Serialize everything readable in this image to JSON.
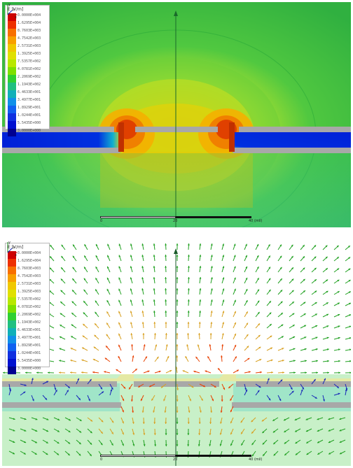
{
  "panels": [
    {
      "legend_title": "E [V/m]",
      "legend_values": [
        "3.0000E+004",
        "1.6295E+004",
        "8.7603E+003",
        "4.7542E+003",
        "2.5731E+003",
        "1.3925E+003",
        "7.5357E+002",
        "4.0781E+002",
        "2.2069E+002",
        "1.1943E+002",
        "6.4633E+001",
        "3.4977E+001",
        "1.8929E+001",
        "1.0244E+001",
        "5.5435E+000",
        "3.0000E+000"
      ],
      "scale_labels": [
        "0",
        "20",
        "40 (mil)"
      ],
      "axis_labels": [
        "y",
        "z",
        "x"
      ]
    },
    {
      "legend_title": "E [V/m]",
      "legend_values": [
        "3.0000E+004",
        "1.6295E+004",
        "8.7603E+003",
        "4.7542E+003",
        "2.5731E+003",
        "1.3925E+003",
        "7.5357E+002",
        "4.0781E+002",
        "2.2069E+002",
        "1.1943E+002",
        "6.4633E+001",
        "3.4977E+001",
        "1.8929E+001",
        "1.0244E+001",
        "5.5435E+000",
        "3.0000E+000"
      ],
      "scale_labels": [
        "0",
        "20",
        "40 (mil)"
      ],
      "axis_labels": [
        "y",
        "z",
        "x"
      ]
    }
  ],
  "colors": {
    "legend_ramp": [
      "#d00000",
      "#ee3000",
      "#f87000",
      "#f8a000",
      "#f0c800",
      "#e0e000",
      "#b8e800",
      "#7ee000",
      "#30d030",
      "#20c080",
      "#10b0b8",
      "#1090e8",
      "#1060f0",
      "#1030e0",
      "#0010d0",
      "#000090"
    ],
    "field_background": "#38b848",
    "metal": "#a8a8a8",
    "substrate_low_field": "#0030d8",
    "arrow_strong": "#e84000",
    "arrow_weak": "#20a020",
    "arrow_blue": "#1828b8",
    "bottom_background": "#c8f0c8",
    "dielectric_tint": "#8ee0c8"
  }
}
